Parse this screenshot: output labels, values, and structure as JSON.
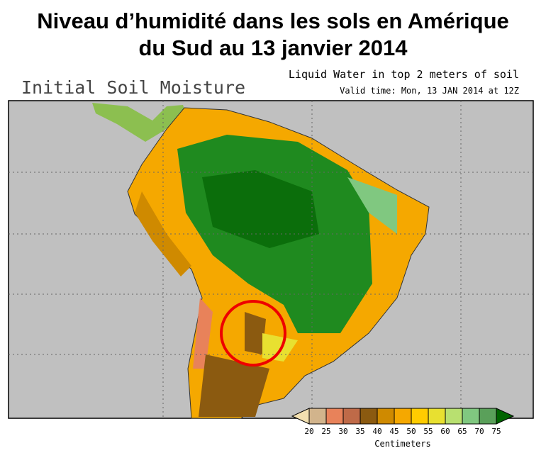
{
  "header": {
    "title_lines": [
      "Niveau d’humidité dans les sols en Amérique",
      "du Sud au 13 janvier 2014"
    ]
  },
  "map": {
    "product": "Initial Soil Moisture",
    "description": "Liquid Water in top 2 meters of soil",
    "valid_time": "Valid time: Mon, 13 JAN 2014 at 12Z"
  },
  "legend": {
    "ticks": [
      20,
      25,
      30,
      35,
      40,
      45,
      50,
      55,
      60,
      65,
      70,
      75
    ],
    "below_color": "#f3e0b0",
    "above_color": "#006400",
    "colors": [
      "#d2b48c",
      "#e8825a",
      "#bf6a48",
      "#8b5a10",
      "#cf8a00",
      "#f5a800",
      "#ffcc00",
      "#e8e030",
      "#b8e070",
      "#80c880",
      "#5aa05a"
    ],
    "unit": "Centimeters"
  }
}
